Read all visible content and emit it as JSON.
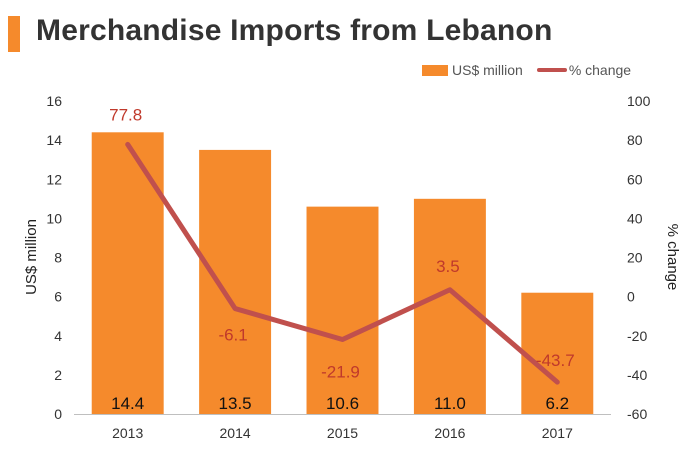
{
  "title": "Merchandise Imports from Lebanon",
  "colors": {
    "accent": "#F58A2C",
    "bar": "#F58A2C",
    "line": "#C0504D",
    "line_label": "#C0392B"
  },
  "chart_data": {
    "type": "bar",
    "categories": [
      "2013",
      "2014",
      "2015",
      "2016",
      "2017"
    ],
    "series": [
      {
        "name": "US$ million",
        "type": "bar",
        "axis": "left",
        "values": [
          14.4,
          13.5,
          10.6,
          11.0,
          6.2
        ],
        "labels": [
          "14.4",
          "13.5",
          "10.6",
          "11.0",
          "6.2"
        ]
      },
      {
        "name": "% change",
        "type": "line",
        "axis": "right",
        "values": [
          77.8,
          -6.1,
          -21.9,
          3.5,
          -43.7
        ],
        "labels": [
          "77.8",
          "-6.1",
          "-21.9",
          "3.5",
          "-43.7"
        ]
      }
    ],
    "ylabel": "US$ million",
    "y2label": "% change",
    "ylim": [
      0,
      16
    ],
    "yticks": [
      "0",
      "2",
      "4",
      "6",
      "8",
      "10",
      "12",
      "14",
      "16"
    ],
    "y2lim": [
      -60,
      100
    ],
    "y2ticks": [
      "-60",
      "-40",
      "-20",
      "0",
      "20",
      "40",
      "60",
      "80",
      "100"
    ],
    "legend_position": "top-right",
    "grid": false
  }
}
